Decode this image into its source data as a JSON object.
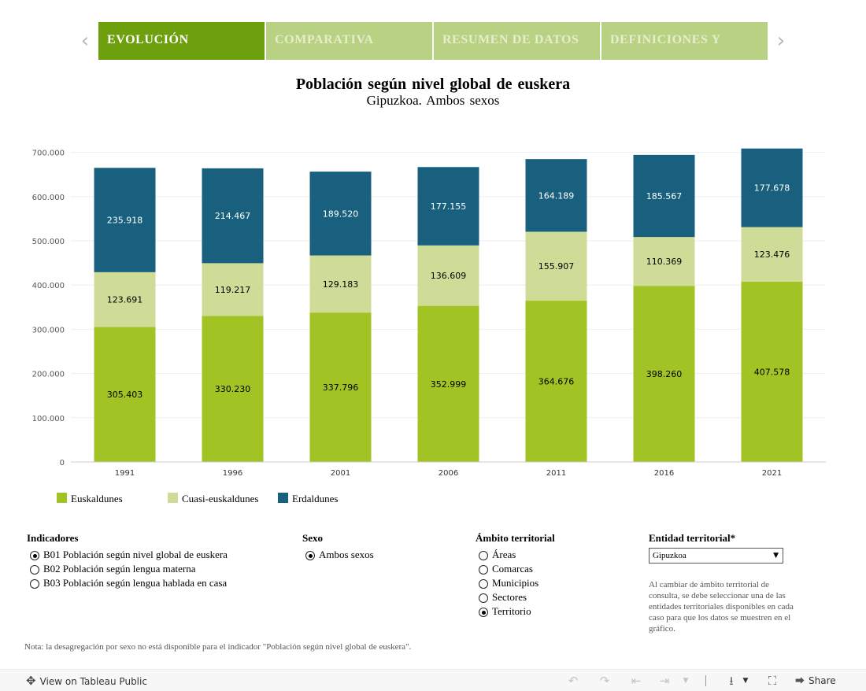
{
  "tabs": {
    "items": [
      {
        "label": "EVOLUCIÓN",
        "active": true
      },
      {
        "label": "COMPARATIVA",
        "active": false
      },
      {
        "label": "RESUMEN DE DATOS",
        "active": false
      },
      {
        "label": "DEFINICIONES Y",
        "active": false
      }
    ],
    "prev_icon": "chevron-left-icon",
    "next_icon": "chevron-right-icon"
  },
  "chart_data": {
    "type": "bar",
    "stacked": true,
    "title": "Población según nivel global de euskera",
    "subtitle": "Gipuzkoa. Ambos sexos",
    "categories": [
      "1991",
      "1996",
      "2001",
      "2006",
      "2011",
      "2016",
      "2021"
    ],
    "series": [
      {
        "name": "Euskaldunes",
        "color": "#a1c424",
        "label_color": "#000000",
        "values": [
          305403,
          330230,
          337796,
          352999,
          364676,
          398260,
          407578
        ],
        "labels": [
          "305.403",
          "330.230",
          "337.796",
          "352.999",
          "364.676",
          "398.260",
          "407.578"
        ]
      },
      {
        "name": "Cuasi-euskaldunes",
        "color": "#cedc97",
        "label_color": "#000000",
        "values": [
          123691,
          119217,
          129183,
          136609,
          155907,
          110369,
          123476
        ],
        "labels": [
          "123.691",
          "119.217",
          "129.183",
          "136.609",
          "155.907",
          "110.369",
          "123.476"
        ]
      },
      {
        "name": "Erdaldunes",
        "color": "#19607f",
        "label_color": "#ffffff",
        "values": [
          235918,
          214467,
          189520,
          177155,
          164189,
          185567,
          177678
        ],
        "labels": [
          "235.918",
          "214.467",
          "189.520",
          "177.155",
          "164.189",
          "185.567",
          "177.678"
        ]
      }
    ],
    "ylim": [
      0,
      720000
    ],
    "yticks": [
      0,
      100000,
      200000,
      300000,
      400000,
      500000,
      600000,
      700000
    ],
    "ytick_labels": [
      "0",
      "100.000",
      "200.000",
      "300.000",
      "400.000",
      "500.000",
      "600.000",
      "700.000"
    ],
    "grid": true,
    "legend_position": "bottom-left"
  },
  "filters": {
    "indicadores": {
      "title": "Indicadores",
      "options": [
        {
          "label": "B01 Población según nivel global de euskera",
          "selected": true
        },
        {
          "label": "B02 Población según lengua materna",
          "selected": false
        },
        {
          "label": "B03 Población según lengua hablada en casa",
          "selected": false
        }
      ]
    },
    "sexo": {
      "title": "Sexo",
      "options": [
        {
          "label": "Ambos sexos",
          "selected": true
        }
      ]
    },
    "ambito": {
      "title": "Ámbito territorial",
      "options": [
        {
          "label": "Áreas",
          "selected": false
        },
        {
          "label": "Comarcas",
          "selected": false
        },
        {
          "label": "Municipios",
          "selected": false
        },
        {
          "label": "Sectores",
          "selected": false
        },
        {
          "label": "Territorio",
          "selected": true
        }
      ]
    },
    "entidad": {
      "title": "Entidad territorial*",
      "value": "Gipuzkoa",
      "help": "Al cambiar de ámbito territorial de consulta, se debe seleccionar una de las entidades territoriales disponibles en cada caso para que los datos se muestren en el gráfico."
    }
  },
  "footnote": "Nota: la desagregación por sexo no está disponible para el indicador \"Población según nivel global de euskera\".",
  "toolbar": {
    "view_label": "View on Tableau Public",
    "share_label": "Share"
  }
}
